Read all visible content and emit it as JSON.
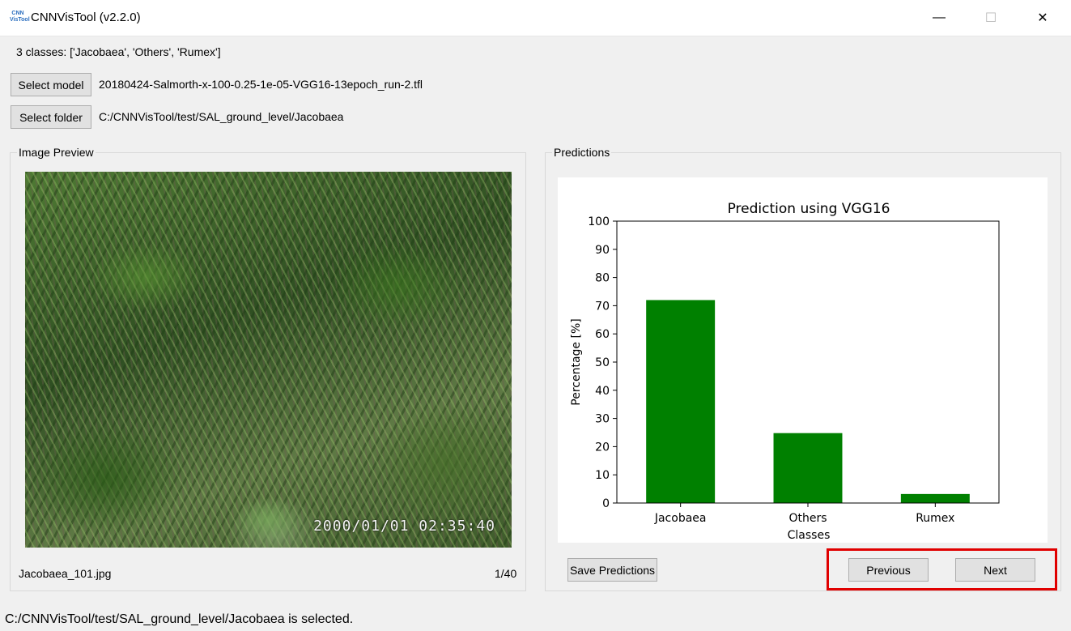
{
  "window": {
    "icon_text": "CNN VisTool",
    "title": "CNNVisTool (v2.2.0)",
    "minimize": "—",
    "maximize": "☐",
    "close": "✕"
  },
  "classes_label": "3 classes: ['Jacobaea', 'Others', 'Rumex']",
  "model": {
    "button": "Select model",
    "value": "20180424-Salmorth-x-100-0.25-1e-05-VGG16-13epoch_run-2.tfl"
  },
  "folder": {
    "button": "Select folder",
    "value": "C:/CNNVisTool/test/SAL_ground_level/Jacobaea"
  },
  "preview": {
    "title": "Image Preview",
    "filename": "Jacobaea_101.jpg",
    "counter": "1/40",
    "timestamp": "2000/01/01 02:35:40"
  },
  "predictions": {
    "title": "Predictions",
    "save_button": "Save Predictions",
    "previous_button": "Previous",
    "next_button": "Next"
  },
  "status": "C:/CNNVisTool/test/SAL_ground_level/Jacobaea is selected.",
  "colors": {
    "bar": "#008000",
    "highlight": "#e00000"
  },
  "chart_data": {
    "type": "bar",
    "title": "Prediction using VGG16",
    "xlabel": "Classes",
    "ylabel": "Percentage [%]",
    "categories": [
      "Jacobaea",
      "Others",
      "Rumex"
    ],
    "values": [
      72,
      24.8,
      3.2
    ],
    "ylim": [
      0,
      100
    ],
    "yticks": [
      0,
      10,
      20,
      30,
      40,
      50,
      60,
      70,
      80,
      90,
      100
    ],
    "grid": false
  }
}
